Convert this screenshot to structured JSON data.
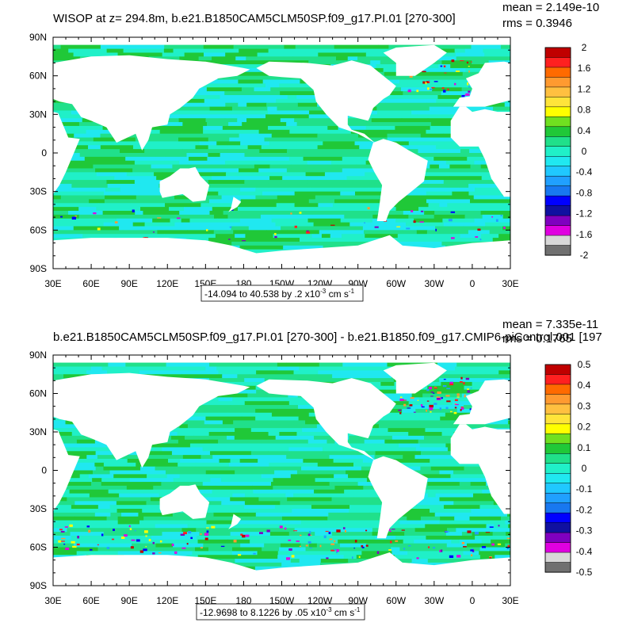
{
  "chart_data": [
    {
      "type": "heatmap",
      "title": "WISOP at z= 294.8m, b.e21.B1850CAM5CLM50SP.f09_g17.PI.01 [270-300]",
      "stats": {
        "mean": "mean = 2.149e-10",
        "rms": "rms = 0.3946"
      },
      "x_ticks": [
        "30E",
        "60E",
        "90E",
        "120E",
        "150E",
        "180",
        "150W",
        "120W",
        "90W",
        "60W",
        "30W",
        "0",
        "30E"
      ],
      "y_ticks": [
        "90N",
        "60N",
        "30N",
        "0",
        "30S",
        "60S",
        "90S"
      ],
      "xlim": [
        30,
        390
      ],
      "ylim": [
        -90,
        90
      ],
      "colorbar": {
        "levels": [
          "2",
          "1.6",
          "1.2",
          "0.8",
          "0.4",
          "0",
          "-0.4",
          "-0.8",
          "-1.2",
          "-1.6",
          "-2"
        ],
        "colors": [
          "#c00000",
          "#ff2020",
          "#ff6a00",
          "#ff9a30",
          "#ffc040",
          "#ffe43a",
          "#ffff00",
          "#70e020",
          "#20c838",
          "#20e08a",
          "#20f0c8",
          "#20e8f0",
          "#20c8ff",
          "#20a0ff",
          "#1878f0",
          "#0000ff",
          "#1010a0",
          "#8000c0",
          "#e000e0",
          "#d8d8d8",
          "#707070"
        ]
      },
      "info_box": {
        "text": "-14.094 to 40.538 by .2 x10",
        "exp": "-3",
        "unit": " cm s",
        "unit_exp": "-1"
      }
    },
    {
      "type": "heatmap",
      "title": "b.e21.B1850CAM5CLM50SP.f09_g17.PI.01 [270-300] - b.e21.B1850.f09_g17.CMIP6-piControl.001 [197",
      "stats": {
        "mean": "mean = 7.335e-11",
        "rms": "rms = 0.1765"
      },
      "x_ticks": [
        "30E",
        "60E",
        "90E",
        "120E",
        "150E",
        "180",
        "150W",
        "120W",
        "90W",
        "60W",
        "30W",
        "0",
        "30E"
      ],
      "y_ticks": [
        "90N",
        "60N",
        "30N",
        "0",
        "30S",
        "60S",
        "90S"
      ],
      "xlim": [
        30,
        390
      ],
      "ylim": [
        -90,
        90
      ],
      "colorbar": {
        "levels": [
          "0.5",
          "0.4",
          "0.3",
          "0.2",
          "0.1",
          "0",
          "-0.1",
          "-0.2",
          "-0.3",
          "-0.4",
          "-0.5"
        ],
        "colors": [
          "#c00000",
          "#ff2020",
          "#ff6a00",
          "#ff9a30",
          "#ffc040",
          "#ffe43a",
          "#ffff00",
          "#70e020",
          "#20c838",
          "#20e08a",
          "#20f0c8",
          "#20e8f0",
          "#20c8ff",
          "#20a0ff",
          "#1878f0",
          "#0000ff",
          "#1010a0",
          "#8000c0",
          "#e000e0",
          "#d8d8d8",
          "#707070"
        ]
      },
      "info_box": {
        "text": "-12.9698 to 8.1226 by .05 x10",
        "exp": "-3",
        "unit": " cm s",
        "unit_exp": "-1"
      }
    }
  ]
}
